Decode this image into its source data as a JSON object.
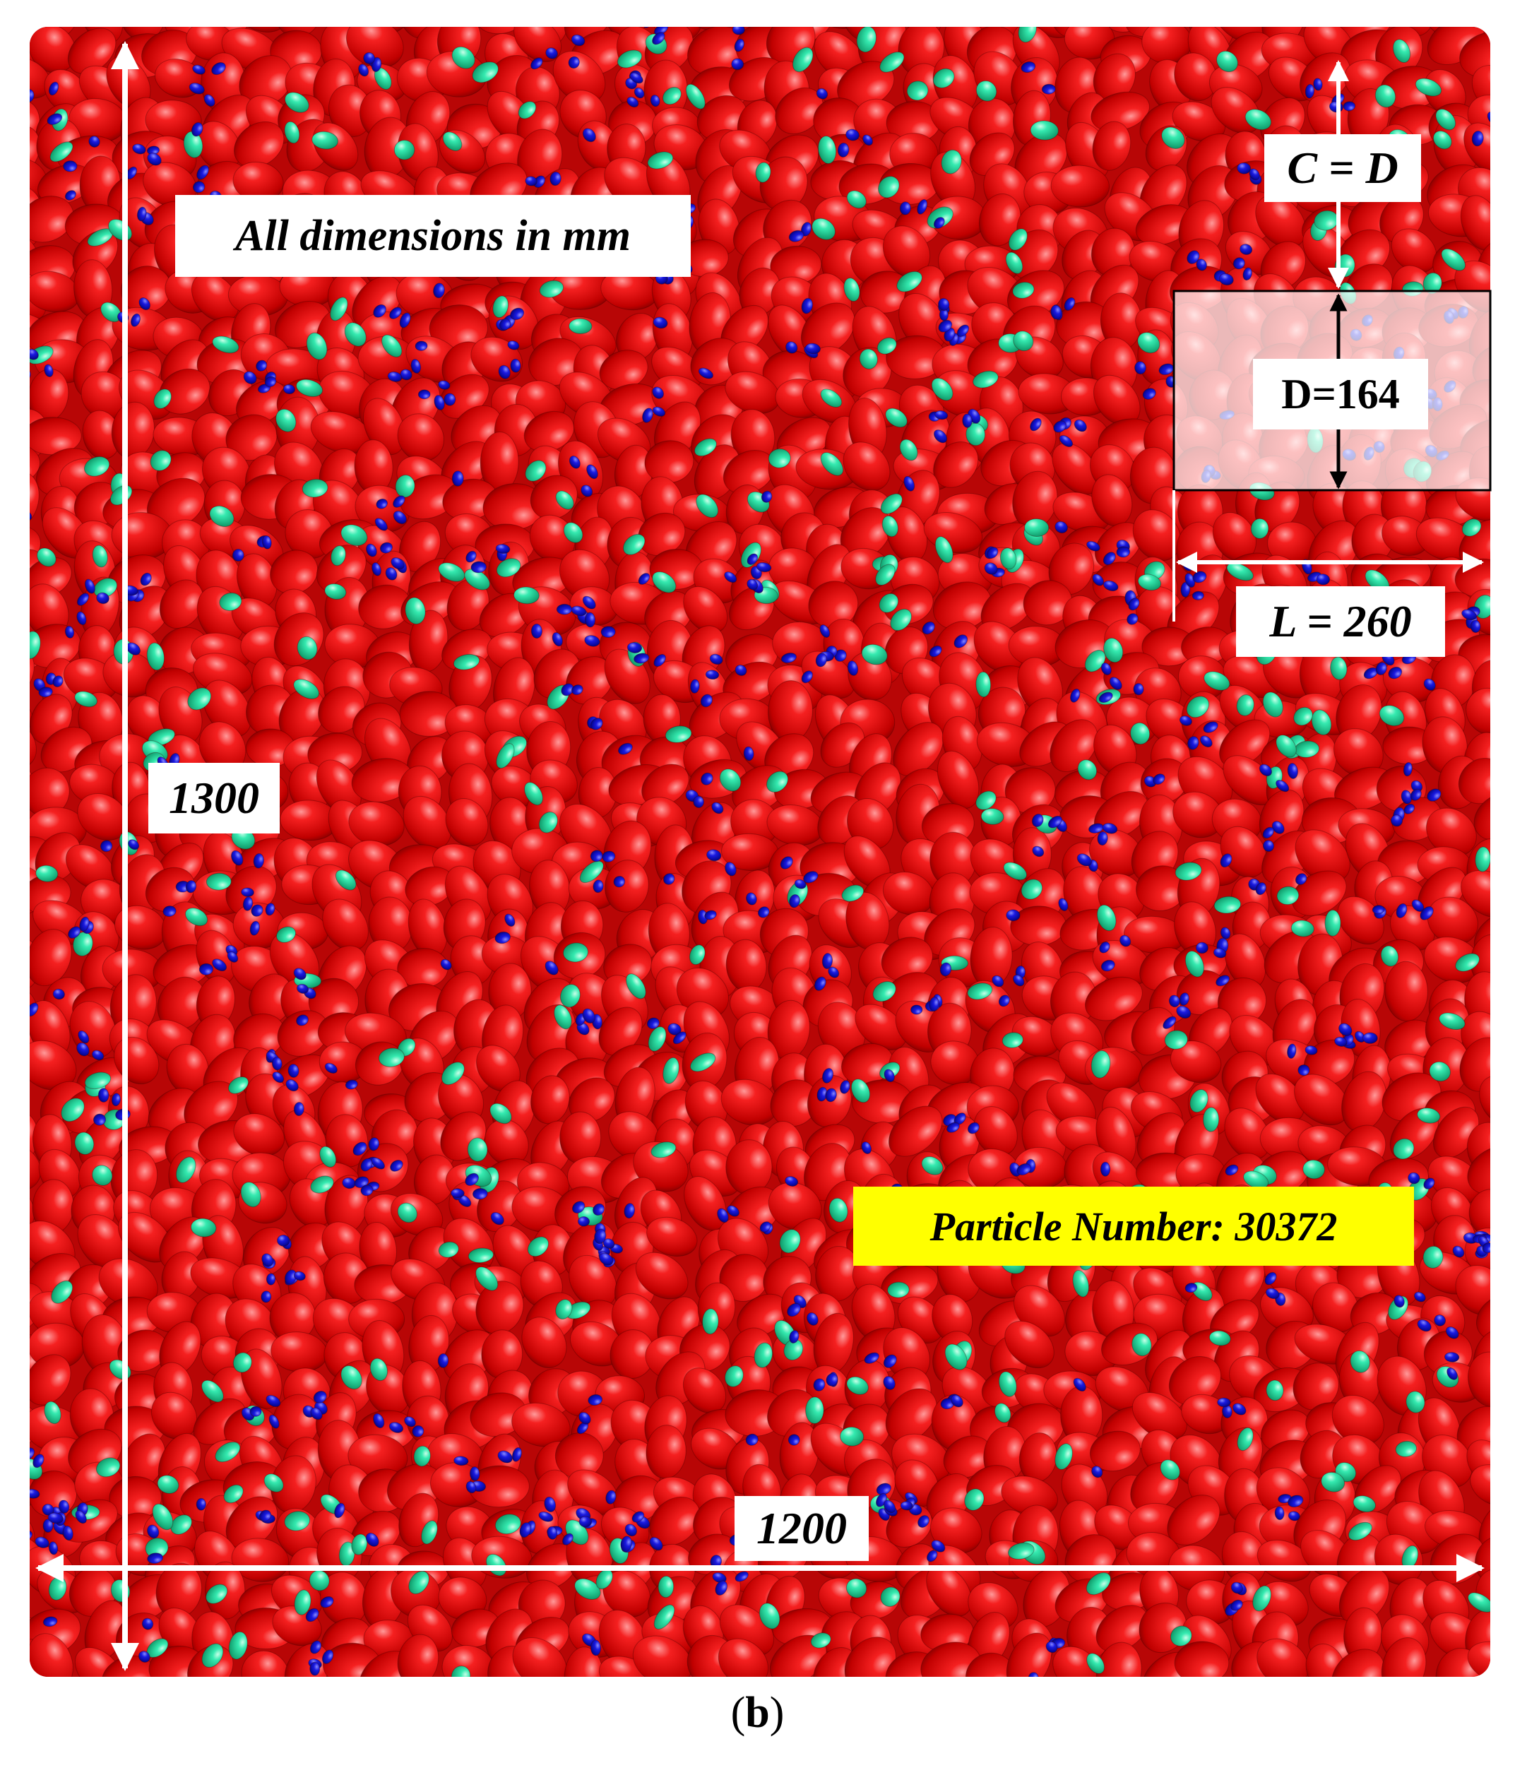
{
  "figure": {
    "note_label": "All dimensions in mm",
    "height_label": "1300",
    "width_label": "1200",
    "spacing_label": "C = D",
    "depth_label": "D=164",
    "length_label": "L = 260",
    "particle_label": "Particle Number: 30372",
    "panel_letter": "b",
    "colors": {
      "large_particle": "#e01010",
      "medium_particle": "#20e0a0",
      "small_particle": "#1010d0",
      "background": "#c00808",
      "dimension_line": "#ffffff",
      "inner_arrow": "#000000",
      "highlight_label": "#ffff00"
    }
  }
}
